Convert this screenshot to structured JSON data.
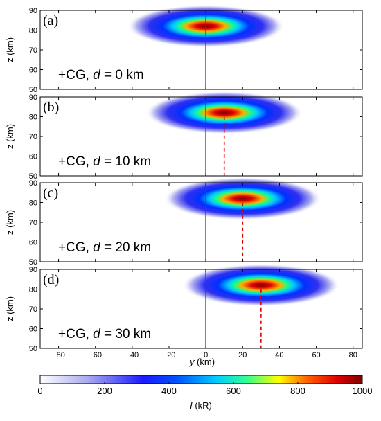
{
  "figure": {
    "xlabel_var": "y",
    "xlabel_unit": " (km)",
    "ylabel": "z (km)",
    "colorbar": {
      "label_var": "I",
      "label_unit": " (kR)",
      "min": 0,
      "max": 1000,
      "ticks": [
        "0",
        "200",
        "400",
        "600",
        "800",
        "1000"
      ]
    }
  },
  "chart_data": [
    {
      "type": "heatmap",
      "panel_label": "(a)",
      "annotation_prefix": "+CG, ",
      "annotation_var": "d",
      "annotation_suffix": " = 0 km",
      "xlim": [
        -90,
        85
      ],
      "ylim": [
        50,
        90
      ],
      "xticks": [
        -80,
        -60,
        -40,
        -20,
        0,
        20,
        40,
        60,
        80
      ],
      "yticks": [
        50,
        60,
        70,
        80,
        90
      ],
      "yticklabels": [
        "50",
        "60",
        "70",
        "80",
        "90"
      ],
      "peak_center_y_km": 0,
      "peak_center_z_km": 82,
      "peak_intensity_kR": 1000,
      "discharge_line_y_km": 0,
      "dashed_line_y_km": null
    },
    {
      "type": "heatmap",
      "panel_label": "(b)",
      "annotation_prefix": "+CG, ",
      "annotation_var": "d",
      "annotation_suffix": " = 10 km",
      "xlim": [
        -90,
        85
      ],
      "ylim": [
        50,
        90
      ],
      "xticks": [
        -80,
        -60,
        -40,
        -20,
        0,
        20,
        40,
        60,
        80
      ],
      "yticks": [
        50,
        60,
        70,
        80,
        90
      ],
      "yticklabels": [
        "50",
        "60",
        "70",
        "80",
        "90"
      ],
      "peak_center_y_km": 10,
      "peak_center_z_km": 82,
      "peak_intensity_kR": 1000,
      "discharge_line_y_km": 0,
      "dashed_line_y_km": 10
    },
    {
      "type": "heatmap",
      "panel_label": "(c)",
      "annotation_prefix": "+CG, ",
      "annotation_var": "d",
      "annotation_suffix": " = 20 km",
      "xlim": [
        -90,
        85
      ],
      "ylim": [
        50,
        90
      ],
      "xticks": [
        -80,
        -60,
        -40,
        -20,
        0,
        20,
        40,
        60,
        80
      ],
      "yticks": [
        50,
        60,
        70,
        80,
        90
      ],
      "yticklabels": [
        "50",
        "60",
        "70",
        "80",
        "90"
      ],
      "peak_center_y_km": 20,
      "peak_center_z_km": 82,
      "peak_intensity_kR": 1000,
      "discharge_line_y_km": 0,
      "dashed_line_y_km": 20
    },
    {
      "type": "heatmap",
      "panel_label": "(d)",
      "annotation_prefix": "+CG, ",
      "annotation_var": "d",
      "annotation_suffix": " = 30 km",
      "xlim": [
        -90,
        85
      ],
      "ylim": [
        50,
        90
      ],
      "xticks": [
        -80,
        -60,
        -40,
        -20,
        0,
        20,
        40,
        60,
        80
      ],
      "xticklabels": [
        "−80",
        "−60",
        "−40",
        "−20",
        "0",
        "20",
        "40",
        "60",
        "80"
      ],
      "yticks": [
        50,
        60,
        70,
        80,
        90
      ],
      "yticklabels": [
        "50",
        "60",
        "70",
        "80",
        "90"
      ],
      "peak_center_y_km": 30,
      "peak_center_z_km": 82,
      "peak_intensity_kR": 1000,
      "discharge_line_y_km": 0,
      "dashed_line_y_km": 30
    }
  ]
}
